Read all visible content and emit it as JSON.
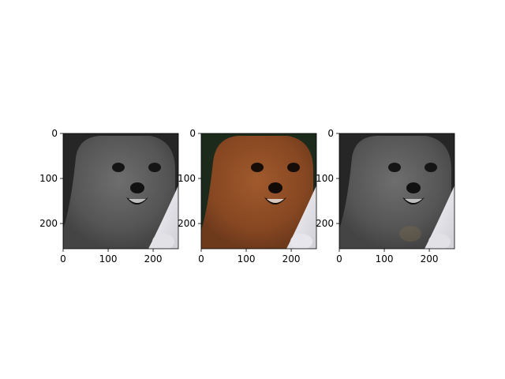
{
  "chart_data": [
    {
      "type": "image",
      "content": "puppy-face-grayscale",
      "colormap": "gray",
      "xlim": [
        0,
        256
      ],
      "ylim": [
        256,
        0
      ],
      "x_ticks": [
        0,
        100,
        200
      ],
      "y_ticks": [
        0,
        100,
        200
      ],
      "x_tick_labels": [
        "0",
        "100",
        "200"
      ],
      "y_tick_labels": [
        "0",
        "100",
        "200"
      ]
    },
    {
      "type": "image",
      "content": "puppy-face-color",
      "colormap": "rgb",
      "xlim": [
        0,
        256
      ],
      "ylim": [
        256,
        0
      ],
      "x_ticks": [
        0,
        100,
        200
      ],
      "y_ticks": [
        0,
        100,
        200
      ],
      "x_tick_labels": [
        "0",
        "100",
        "200"
      ],
      "y_tick_labels": [
        "0",
        "100",
        "200"
      ]
    },
    {
      "type": "image",
      "content": "puppy-face-grayscale-with-faint-color",
      "colormap": "gray",
      "xlim": [
        0,
        256
      ],
      "ylim": [
        256,
        0
      ],
      "x_ticks": [
        0,
        100,
        200
      ],
      "y_ticks": [
        0,
        100,
        200
      ],
      "x_tick_labels": [
        "0",
        "100",
        "200"
      ],
      "y_tick_labels": [
        "0",
        "100",
        "200"
      ]
    }
  ],
  "colors": {
    "fur_gray": "#5a5a5a",
    "fur_brown": "#8a4a22",
    "background_dark_green": "#1b2a1a",
    "background_dark_gray": "#262626",
    "highlight_white": "#e9e9ee",
    "axis": "#000000"
  }
}
